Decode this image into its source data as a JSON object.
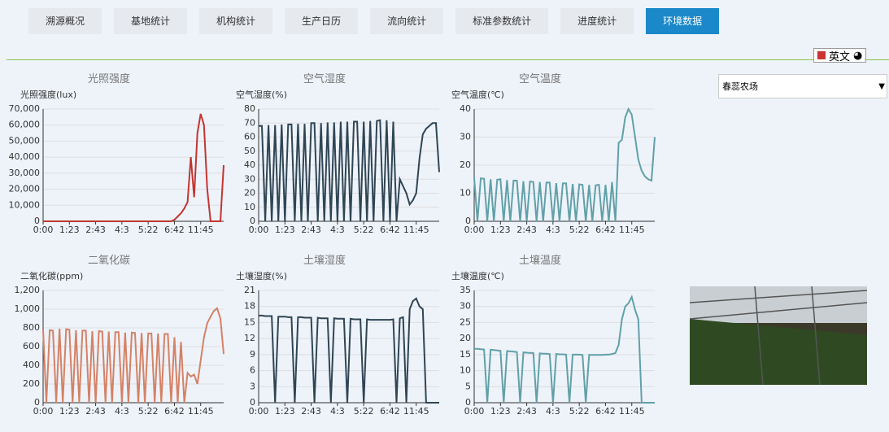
{
  "tabs": [
    "溯源概况",
    "基地统计",
    "机构统计",
    "生产日历",
    "流向统计",
    "标准参数统计",
    "进度统计",
    "环境数据"
  ],
  "language": "英文",
  "farm_select": "春蕊农场",
  "chart_data": [
    {
      "type": "line",
      "title": "光照强度",
      "y_label": "光照强度(lux)",
      "color": "#c23531",
      "categories": [
        "0:00",
        null,
        null,
        null,
        null,
        null,
        null,
        null,
        "1:23",
        null,
        null,
        null,
        null,
        null,
        null,
        null,
        "2:43",
        null,
        null,
        null,
        null,
        null,
        null,
        null,
        "4:3",
        null,
        null,
        null,
        null,
        null,
        null,
        null,
        "5:22",
        null,
        null,
        null,
        null,
        null,
        null,
        null,
        "6:42",
        null,
        null,
        null,
        null,
        null,
        null,
        null,
        "11:45",
        null,
        null,
        null,
        null,
        null,
        null,
        null
      ],
      "values": [
        0,
        0,
        0,
        0,
        0,
        0,
        0,
        0,
        0,
        0,
        0,
        0,
        0,
        0,
        0,
        0,
        0,
        0,
        0,
        0,
        0,
        0,
        0,
        0,
        0,
        0,
        0,
        0,
        0,
        0,
        0,
        0,
        0,
        0,
        0,
        0,
        0,
        0,
        0,
        0,
        1000,
        3000,
        5000,
        8000,
        12000,
        40000,
        15000,
        55000,
        67000,
        60000,
        20000,
        0,
        0,
        0,
        0,
        35000
      ],
      "ylim": [
        0,
        70000
      ],
      "yticks": [
        0,
        {
          "value": 10000,
          "label": "10,000"
        },
        {
          "value": 20000,
          "label": "20,000"
        },
        {
          "value": 30000,
          "label": "30,000"
        },
        {
          "value": 40000,
          "label": "40,000"
        },
        {
          "value": 50000,
          "label": "50,000"
        },
        {
          "value": 60000,
          "label": "60,000"
        },
        {
          "value": 70000,
          "label": "70,000"
        }
      ],
      "grid": true
    },
    {
      "type": "line",
      "title": "空气湿度",
      "y_label": "空气湿度(%)",
      "color": "#2f4554",
      "categories": [
        "0:00",
        null,
        null,
        null,
        null,
        null,
        null,
        null,
        "1:23",
        null,
        null,
        null,
        null,
        null,
        null,
        null,
        "2:43",
        null,
        null,
        null,
        null,
        null,
        null,
        null,
        "4:3",
        null,
        null,
        null,
        null,
        null,
        null,
        null,
        "5:22",
        null,
        null,
        null,
        null,
        null,
        null,
        null,
        "6:42",
        null,
        null,
        null,
        null,
        null,
        null,
        null,
        "11:45",
        null,
        null,
        null,
        null,
        null,
        null,
        null
      ],
      "values": [
        68,
        68,
        0,
        68.5,
        0,
        68.5,
        0,
        69,
        0,
        69,
        69,
        0,
        69.5,
        0,
        69.5,
        0,
        70,
        70,
        0,
        70,
        0,
        70.5,
        0,
        70.5,
        0,
        71,
        0,
        71,
        0,
        71,
        71,
        0,
        71,
        0,
        71.5,
        0,
        71.5,
        72,
        0,
        72,
        0,
        71,
        0,
        30,
        25,
        20,
        12,
        15,
        20,
        45,
        62,
        66,
        68,
        70,
        70,
        35
      ],
      "ylim": [
        0,
        80
      ],
      "yticks": [
        0,
        10,
        20,
        30,
        40,
        50,
        60,
        70,
        80
      ],
      "grid": true
    },
    {
      "type": "line",
      "title": "空气温度",
      "y_label": "空气温度(℃)",
      "color": "#61a0a8",
      "categories": [
        "0:00",
        null,
        null,
        null,
        null,
        null,
        null,
        null,
        "1:23",
        null,
        null,
        null,
        null,
        null,
        null,
        null,
        "2:43",
        null,
        null,
        null,
        null,
        null,
        null,
        null,
        "4:3",
        null,
        null,
        null,
        null,
        null,
        null,
        null,
        "5:22",
        null,
        null,
        null,
        null,
        null,
        null,
        null,
        "6:42",
        null,
        null,
        null,
        null,
        null,
        null,
        null,
        "11:45",
        null,
        null,
        null,
        null,
        null,
        null,
        null
      ],
      "values": [
        15.5,
        0,
        15.3,
        15.2,
        0,
        15,
        0,
        14.8,
        15,
        0,
        14.7,
        0,
        14.5,
        14.5,
        0,
        14.3,
        0,
        14.2,
        14,
        0,
        14,
        0,
        13.8,
        13.8,
        0,
        13.6,
        0,
        13.5,
        13.5,
        0,
        13.3,
        0,
        13.2,
        13,
        0,
        13,
        0,
        12.8,
        13,
        0,
        13,
        0,
        14,
        0,
        28,
        29,
        37,
        40,
        38,
        30,
        22,
        18,
        16,
        15,
        14.5,
        30
      ],
      "ylim": [
        0,
        40
      ],
      "yticks": [
        0,
        10,
        20,
        30,
        40
      ],
      "grid": true
    },
    {
      "type": "line",
      "title": "二氧化碳",
      "y_label": "二氧化碳(ppm)",
      "color": "#d48265",
      "categories": [
        "0:00",
        null,
        null,
        null,
        null,
        null,
        null,
        null,
        "1:23",
        null,
        null,
        null,
        null,
        null,
        null,
        null,
        "2:43",
        null,
        null,
        null,
        null,
        null,
        null,
        null,
        "4:3",
        null,
        null,
        null,
        null,
        null,
        null,
        null,
        "5:22",
        null,
        null,
        null,
        null,
        null,
        null,
        null,
        "6:42",
        null,
        null,
        null,
        null,
        null,
        null,
        null,
        "11:45",
        null,
        null,
        null,
        null,
        null,
        null,
        null
      ],
      "values": [
        780,
        0,
        775,
        770,
        0,
        790,
        0,
        785,
        780,
        0,
        775,
        0,
        770,
        770,
        0,
        765,
        0,
        765,
        760,
        0,
        760,
        0,
        755,
        755,
        0,
        750,
        0,
        750,
        745,
        0,
        745,
        0,
        740,
        740,
        0,
        740,
        0,
        735,
        735,
        0,
        700,
        0,
        650,
        0,
        320,
        280,
        300,
        200,
        450,
        700,
        850,
        920,
        980,
        1010,
        900,
        520
      ],
      "ylim": [
        0,
        1200
      ],
      "yticks": [
        0,
        200,
        400,
        600,
        800,
        {
          "value": 1000,
          "label": "1,000"
        },
        {
          "value": 1200,
          "label": "1,200"
        }
      ],
      "grid": true
    },
    {
      "type": "line",
      "title": "土壤湿度",
      "y_label": "土壤湿度(%)",
      "color": "#2f4554",
      "categories": [
        "0:00",
        null,
        null,
        null,
        null,
        null,
        null,
        null,
        "1:23",
        null,
        null,
        null,
        null,
        null,
        null,
        null,
        "2:43",
        null,
        null,
        null,
        null,
        null,
        null,
        null,
        "4:3",
        null,
        null,
        null,
        null,
        null,
        null,
        null,
        "5:22",
        null,
        null,
        null,
        null,
        null,
        null,
        null,
        "6:42",
        null,
        null,
        null,
        null,
        null,
        null,
        null,
        "11:45",
        null,
        null,
        null,
        null,
        null,
        null,
        null
      ],
      "values": [
        16.3,
        16.3,
        16.2,
        16.2,
        16.2,
        0,
        16.1,
        16.1,
        16.1,
        16,
        16,
        0,
        16,
        16,
        15.9,
        15.9,
        15.9,
        0,
        15.9,
        15.8,
        15.8,
        15.8,
        0,
        15.8,
        15.7,
        15.7,
        15.7,
        0,
        15.7,
        15.6,
        15.6,
        15.6,
        0,
        15.6,
        15.5,
        15.5,
        15.5,
        15.5,
        15.5,
        15.5,
        15.5,
        15.6,
        0,
        15.8,
        16,
        0,
        17.5,
        19,
        19.5,
        18,
        17.5,
        0,
        0,
        0,
        0,
        0
      ],
      "ylim": [
        0,
        21
      ],
      "yticks": [
        0,
        3,
        6,
        9,
        12,
        15,
        18,
        21
      ],
      "grid": true
    },
    {
      "type": "line",
      "title": "土壤温度",
      "y_label": "土壤温度(℃)",
      "color": "#61a0a8",
      "categories": [
        "0:00",
        null,
        null,
        null,
        null,
        null,
        null,
        null,
        "1:23",
        null,
        null,
        null,
        null,
        null,
        null,
        null,
        "2:43",
        null,
        null,
        null,
        null,
        null,
        null,
        null,
        "4:3",
        null,
        null,
        null,
        null,
        null,
        null,
        null,
        "5:22",
        null,
        null,
        null,
        null,
        null,
        null,
        null,
        "6:42",
        null,
        null,
        null,
        null,
        null,
        null,
        null,
        "11:45",
        null,
        null,
        null,
        null,
        null,
        null,
        null
      ],
      "values": [
        16.8,
        16.8,
        16.7,
        16.6,
        0,
        16.5,
        16.4,
        16.3,
        16.2,
        0,
        16.1,
        16,
        15.9,
        15.8,
        0,
        15.7,
        15.6,
        15.5,
        15.5,
        0,
        15.4,
        15.3,
        15.3,
        15.2,
        0,
        15.2,
        15.1,
        15.1,
        15,
        0,
        15,
        15,
        15,
        14.9,
        0,
        14.9,
        14.9,
        14.9,
        14.9,
        14.9,
        15,
        15,
        15.2,
        15.5,
        18,
        26,
        30,
        31,
        33,
        29,
        26,
        0,
        0,
        0,
        0,
        0
      ],
      "ylim": [
        0,
        35
      ],
      "yticks": [
        0,
        5,
        10,
        15,
        20,
        25,
        30,
        35
      ],
      "grid": true
    }
  ]
}
